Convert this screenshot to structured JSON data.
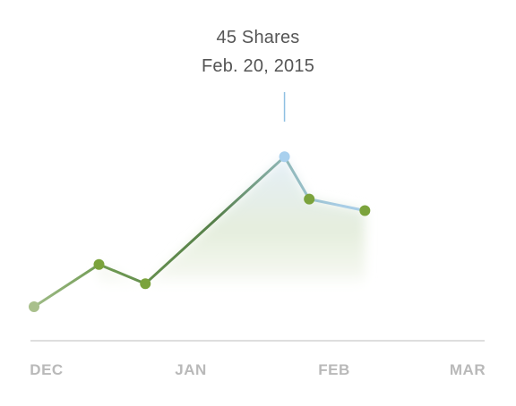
{
  "chart_data": {
    "type": "line",
    "x_ticks": [
      "DEC",
      "JAN",
      "FEB",
      "MAR"
    ],
    "series": [
      {
        "points": [
          {
            "x": "2014-12-01",
            "y": 6
          },
          {
            "x": "2014-12-22",
            "y": 17
          },
          {
            "x": "2015-01-06",
            "y": 12
          },
          {
            "x": "2015-02-20",
            "y": 45
          },
          {
            "x": "2015-02-28",
            "y": 34
          },
          {
            "x": "2015-03-18",
            "y": 31
          }
        ]
      }
    ],
    "highlight": {
      "index": 3,
      "value_text": "45 Shares",
      "date_text": "Feb. 20, 2015"
    },
    "colors": {
      "line_green": "#6f9a52",
      "line_blue": "#a8cde6",
      "point_green": "#7ba33c",
      "point_blue": "#a9d0ee",
      "first_point": "#a9c08c",
      "axis": "#d3d3d3",
      "fill_green": "#e9f1dc",
      "fill_blue": "#dceaf6"
    },
    "grid": false,
    "legend": "none"
  }
}
